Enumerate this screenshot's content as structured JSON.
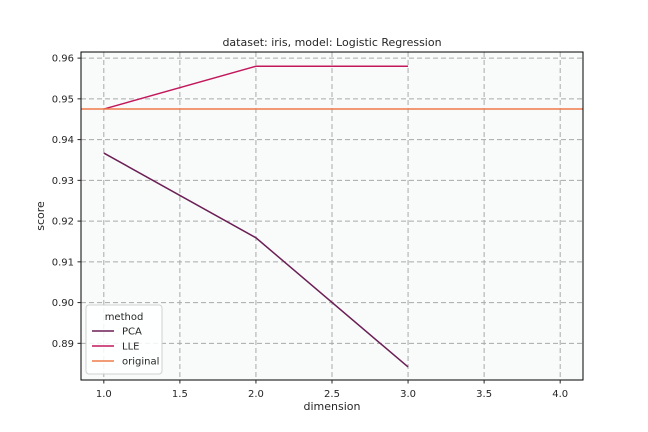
{
  "chart_data": {
    "type": "line",
    "title": "dataset: iris, model: Logistic Regression",
    "xlabel": "dimension",
    "ylabel": "score",
    "xlim": [
      0.85,
      4.15
    ],
    "ylim": [
      0.881,
      0.9615
    ],
    "xticks": [
      "1.0",
      "1.5",
      "2.0",
      "2.5",
      "3.0",
      "3.5",
      "4.0"
    ],
    "yticks": [
      "0.89",
      "0.90",
      "0.91",
      "0.92",
      "0.93",
      "0.94",
      "0.95",
      "0.96"
    ],
    "grid": true,
    "legend": {
      "title": "method",
      "placement": "lower-left"
    },
    "series": [
      {
        "name": "PCA",
        "color": "#6b1f55",
        "x": [
          1.0,
          2.0,
          3.0
        ],
        "y": [
          0.9367,
          0.9159,
          0.8842
        ]
      },
      {
        "name": "LLE",
        "color": "#c2185b",
        "x": [
          1.0,
          2.0,
          3.0
        ],
        "y": [
          0.9475,
          0.958,
          0.958
        ]
      },
      {
        "name": "original",
        "color": "#ef7b4b",
        "type": "hline",
        "y": 0.9475
      }
    ]
  }
}
